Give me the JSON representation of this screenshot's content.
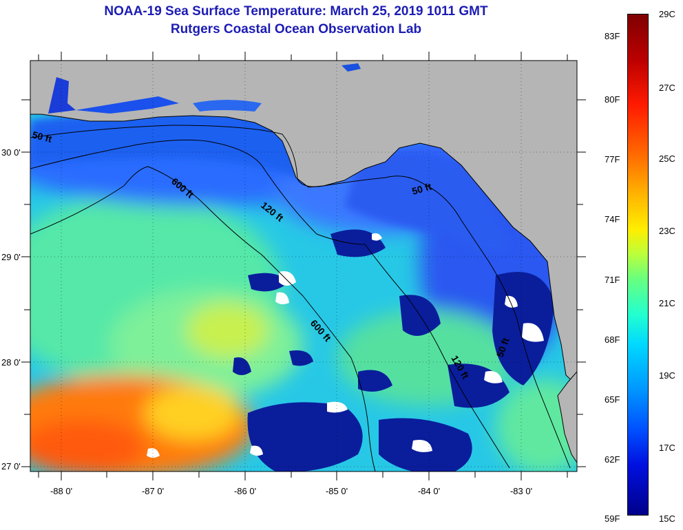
{
  "title": {
    "line1": "NOAA-19 Sea Surface Temperature:  March 25, 2019 1011 GMT",
    "line2": "Rutgers Coastal Ocean Observation Lab"
  },
  "map": {
    "lat_labels": [
      "30 0'",
      "29 0'",
      "28 0'",
      "27 0'"
    ],
    "lon_labels": [
      "-88 0'",
      "-87 0'",
      "-86 0'",
      "-85 0'",
      "-84 0'",
      "-83 0'"
    ],
    "contour_labels": [
      "50 ft",
      "600 ft",
      "120 ft",
      "50 ft",
      "600 ft",
      "120 ft",
      "50 ft"
    ],
    "colors": {
      "land": "#b5b5b5",
      "cloud": "#ffffff",
      "coast": "#000000"
    }
  },
  "colorbar": {
    "fahrenheit": [
      "83F",
      "80F",
      "77F",
      "74F",
      "71F",
      "68F",
      "65F",
      "62F",
      "59F"
    ],
    "celsius": [
      "29C",
      "27C",
      "25C",
      "23C",
      "21C",
      "19C",
      "17C",
      "15C"
    ]
  }
}
